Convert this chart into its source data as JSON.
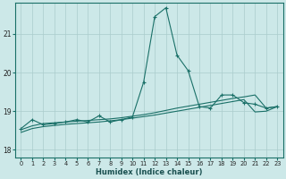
{
  "xlabel": "Humidex (Indice chaleur)",
  "ylabel": "",
  "background_color": "#cce8e8",
  "grid_color": "#aacccc",
  "line_color": "#1a7068",
  "xlim": [
    -0.5,
    23.5
  ],
  "ylim": [
    17.8,
    21.8
  ],
  "yticks": [
    18,
    19,
    20,
    21
  ],
  "xticks": [
    0,
    1,
    2,
    3,
    4,
    5,
    6,
    7,
    8,
    9,
    10,
    11,
    12,
    13,
    14,
    15,
    16,
    17,
    18,
    19,
    20,
    21,
    22,
    23
  ],
  "x": [
    0,
    1,
    2,
    3,
    4,
    5,
    6,
    7,
    8,
    9,
    10,
    11,
    12,
    13,
    14,
    15,
    16,
    17,
    18,
    19,
    20,
    21,
    22,
    23
  ],
  "y_main": [
    18.55,
    18.78,
    18.65,
    18.68,
    18.72,
    18.78,
    18.72,
    18.88,
    18.72,
    18.78,
    18.85,
    19.75,
    21.45,
    21.68,
    20.45,
    20.05,
    19.12,
    19.08,
    19.42,
    19.42,
    19.22,
    19.18,
    19.08,
    19.12
  ],
  "y_line2": [
    18.52,
    18.62,
    18.68,
    18.7,
    18.72,
    18.74,
    18.76,
    18.78,
    18.8,
    18.83,
    18.87,
    18.91,
    18.96,
    19.02,
    19.08,
    19.13,
    19.18,
    19.23,
    19.28,
    19.33,
    19.37,
    19.42,
    19.08,
    19.12
  ],
  "y_line3": [
    18.45,
    18.55,
    18.6,
    18.63,
    18.66,
    18.68,
    18.7,
    18.72,
    18.75,
    18.78,
    18.82,
    18.86,
    18.9,
    18.95,
    19.0,
    19.05,
    19.1,
    19.15,
    19.2,
    19.25,
    19.3,
    18.98,
    19.0,
    19.12
  ]
}
